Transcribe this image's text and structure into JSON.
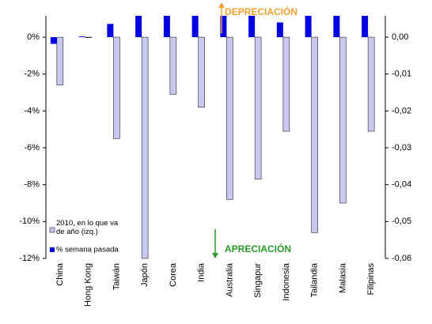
{
  "chart_data": {
    "type": "bar",
    "categories": [
      "China",
      "Hong Kong",
      "Taiwán",
      "Japón",
      "Corea",
      "India",
      "Australia",
      "Singapur",
      "Indonesia",
      "Tailandia",
      "Malasia",
      "Filipinas"
    ],
    "series": [
      {
        "name": "2010, en lo que va de año (izq.)",
        "color": "#c8c8f0",
        "values": [
          -2.6,
          0,
          -5.5,
          -12.0,
          -3.1,
          -3.8,
          -8.8,
          -7.7,
          -5.1,
          -10.6,
          -9.0,
          -5.1
        ]
      },
      {
        "name": "% semana pasada",
        "color": "#0000e0",
        "axis": "y2",
        "values": [
          -0.0018,
          0.0002,
          0.0036,
          0.006,
          0.006,
          0.006,
          0.006,
          0.006,
          0.004,
          0.006,
          0.006,
          0.006
        ]
      }
    ],
    "ylim": [
      -12,
      1.16
    ],
    "yticks": [
      {
        "value": 0,
        "label": "0%"
      },
      {
        "value": -2,
        "label": "-2%"
      },
      {
        "value": -4,
        "label": "-4%"
      },
      {
        "value": -6,
        "label": "-6%"
      },
      {
        "value": -8,
        "label": "-8%"
      },
      {
        "value": -10,
        "label": "-10%"
      },
      {
        "value": -12,
        "label": "-12%"
      }
    ],
    "y2lim": [
      -0.06,
      0.0058
    ],
    "y2ticks": [
      {
        "value": 0,
        "label": "0,00"
      },
      {
        "value": -0.01,
        "label": "-0,01"
      },
      {
        "value": -0.02,
        "label": "-0,02"
      },
      {
        "value": -0.03,
        "label": "-0,03"
      },
      {
        "value": -0.04,
        "label": "-0,04"
      },
      {
        "value": -0.05,
        "label": "-0,05"
      },
      {
        "value": -0.06,
        "label": "-0,06"
      }
    ],
    "annotations": [
      "DEPRECIACIÓN",
      "APRECIACIÓN"
    ],
    "legend": "lower left"
  }
}
